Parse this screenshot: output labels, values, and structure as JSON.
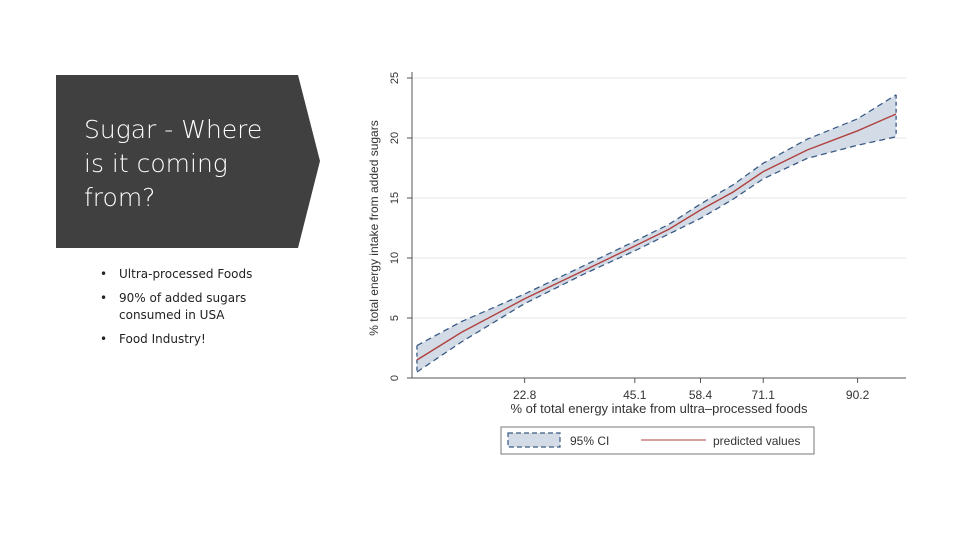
{
  "slide": {
    "title": "Sugar - Where is it coming from?",
    "bullets": [
      "Ultra-processed Foods",
      "90% of added sugars consumed in USA",
      "Food Industry!"
    ],
    "title_bg_color": "#404040"
  },
  "chart_data": {
    "type": "line",
    "xlabel": "% of total energy intake from ultra–processed foods",
    "ylabel": "% total energy intake from added sugars",
    "x_ticks": [
      22.8,
      45.1,
      58.4,
      71.1,
      90.2
    ],
    "y_ticks": [
      0,
      5,
      10,
      15,
      20,
      25
    ],
    "xlim": [
      0,
      100
    ],
    "ylim": [
      0,
      25
    ],
    "grid": true,
    "legend_position": "bottom",
    "legend": [
      "95% CI",
      "predicted values"
    ],
    "series": [
      {
        "name": "predicted values",
        "color": "#b0413e",
        "x": [
          1,
          10,
          22.8,
          35,
          45.1,
          52,
          58.4,
          65,
          71.1,
          80,
          90.2,
          98
        ],
        "y": [
          1.5,
          3.8,
          6.6,
          9.0,
          11.0,
          12.4,
          14.0,
          15.5,
          17.2,
          19.0,
          20.6,
          22.0
        ]
      },
      {
        "name": "95% CI",
        "color": "#d3dce6",
        "edge_color": "#3a5a85",
        "x": [
          1,
          10,
          22.8,
          35,
          45.1,
          52,
          58.4,
          65,
          71.1,
          80,
          90.2,
          98
        ],
        "lower": [
          0.5,
          3.0,
          6.2,
          8.7,
          10.6,
          12.0,
          13.3,
          14.9,
          16.6,
          18.3,
          19.4,
          20.1
        ],
        "upper": [
          2.7,
          4.7,
          7.0,
          9.4,
          11.4,
          12.8,
          14.5,
          16.1,
          17.9,
          19.9,
          21.6,
          23.6
        ]
      }
    ]
  }
}
